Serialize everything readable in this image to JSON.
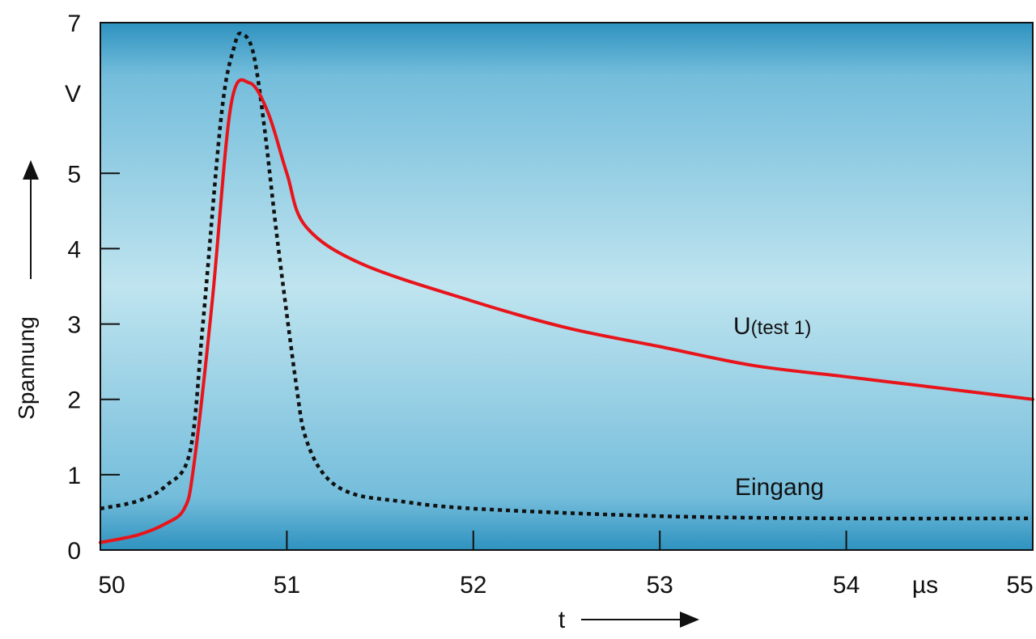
{
  "chart_data": {
    "type": "line",
    "xlabel": "t",
    "ylabel": "Spannung",
    "x_unit": "µs",
    "y_unit": "V",
    "xlim": [
      50,
      55
    ],
    "ylim": [
      0,
      7
    ],
    "x_ticks": [
      "50",
      "51",
      "52",
      "53",
      "54",
      "55"
    ],
    "y_ticks": [
      "0",
      "1",
      "2",
      "3",
      "4",
      "5",
      "7"
    ],
    "grid": false,
    "series": [
      {
        "name": "U(test 1)",
        "name_main": "U",
        "name_sub": "(test 1)",
        "style": "solid",
        "color": "#e8141b",
        "points": [
          [
            50.0,
            0.1
          ],
          [
            50.2,
            0.2
          ],
          [
            50.35,
            0.35
          ],
          [
            50.45,
            0.55
          ],
          [
            50.5,
            1.1
          ],
          [
            50.6,
            3.3
          ],
          [
            50.7,
            5.9
          ],
          [
            50.8,
            6.2
          ],
          [
            50.9,
            5.8
          ],
          [
            51.0,
            5.0
          ],
          [
            51.1,
            4.3
          ],
          [
            51.4,
            3.8
          ],
          [
            52.0,
            3.3
          ],
          [
            52.5,
            2.95
          ],
          [
            53.0,
            2.7
          ],
          [
            53.5,
            2.45
          ],
          [
            54.0,
            2.3
          ],
          [
            54.5,
            2.15
          ],
          [
            55.0,
            2.0
          ]
        ]
      },
      {
        "name": "Eingang",
        "style": "dotted",
        "color": "#111111",
        "points": [
          [
            50.0,
            0.55
          ],
          [
            50.2,
            0.65
          ],
          [
            50.35,
            0.85
          ],
          [
            50.48,
            1.3
          ],
          [
            50.55,
            3.0
          ],
          [
            50.65,
            5.8
          ],
          [
            50.72,
            6.7
          ],
          [
            50.76,
            6.85
          ],
          [
            50.82,
            6.6
          ],
          [
            50.88,
            5.6
          ],
          [
            50.95,
            4.1
          ],
          [
            51.05,
            2.2
          ],
          [
            51.1,
            1.5
          ],
          [
            51.2,
            1.0
          ],
          [
            51.35,
            0.75
          ],
          [
            51.6,
            0.65
          ],
          [
            52.0,
            0.55
          ],
          [
            53.0,
            0.45
          ],
          [
            54.0,
            0.42
          ],
          [
            55.0,
            0.42
          ]
        ]
      }
    ],
    "colors": {
      "gradient_dark": "#2e92bf",
      "gradient_light": "#bfe4ef",
      "axis": "#111111"
    }
  }
}
